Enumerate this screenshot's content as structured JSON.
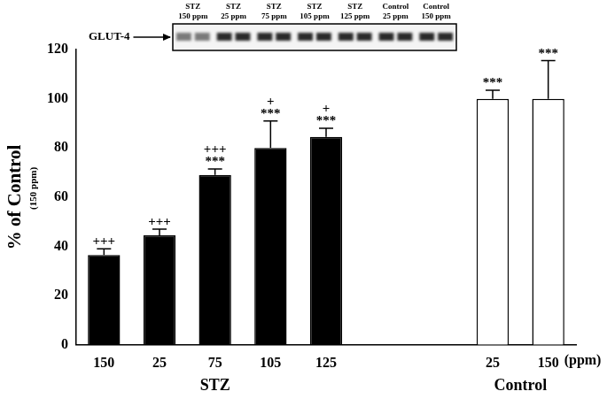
{
  "chart_data": {
    "type": "bar",
    "categories": [
      "150",
      "25",
      "75",
      "105",
      "125",
      null,
      null,
      "25",
      "150"
    ],
    "values": [
      36.5,
      44.5,
      69,
      80,
      84.5,
      null,
      null,
      100,
      100
    ],
    "errors": [
      2.5,
      2.5,
      2.5,
      11,
      3.5,
      null,
      null,
      3.5,
      15.5
    ],
    "colors": [
      "#000000",
      "#000000",
      "#000000",
      "#000000",
      "#000000",
      null,
      null,
      "#ffffff",
      "#ffffff"
    ],
    "significance": [
      [
        "+++"
      ],
      [
        "+++"
      ],
      [
        "+++",
        "***"
      ],
      [
        "+",
        "***"
      ],
      [
        "+",
        "***"
      ],
      null,
      null,
      [
        "***"
      ],
      [
        "***"
      ]
    ],
    "ylabel": "% of Control",
    "ylabel_sub": "(150 ppm)",
    "x_unit": "(ppm)",
    "group_labels": [
      "STZ",
      "Control"
    ],
    "ylim": [
      0,
      120
    ],
    "yticks": [
      0,
      20,
      40,
      60,
      80,
      100,
      120
    ],
    "grid": false
  },
  "blot": {
    "band_label": "GLUT-4",
    "lanes": [
      [
        "STZ",
        "150 ppm"
      ],
      [
        "STZ",
        "25 ppm"
      ],
      [
        "STZ",
        "75 ppm"
      ],
      [
        "STZ",
        "105 ppm"
      ],
      [
        "STZ",
        "125 ppm"
      ],
      [
        "Control",
        "25 ppm"
      ],
      [
        "Control",
        "150 ppm"
      ]
    ]
  }
}
